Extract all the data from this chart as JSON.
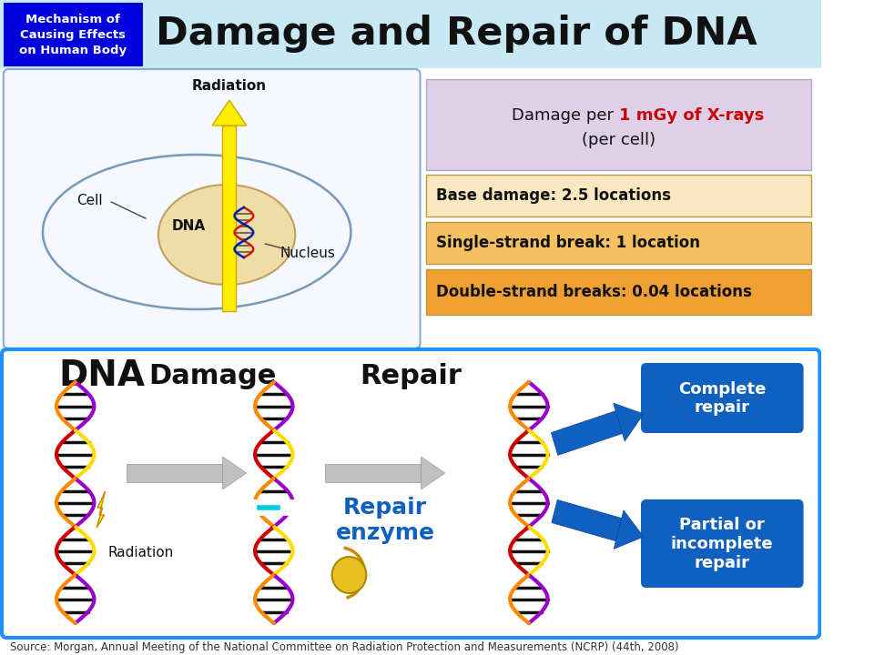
{
  "title": "Damage and Repair of DNA",
  "subtitle_box": "Mechanism of\nCausing Effects\non Human Body",
  "subtitle_box_color": "#0000dd",
  "subtitle_box_text_color": "#ffffff",
  "header_bg_color": "#c8e8f4",
  "damage_header_text_black": "Damage per ",
  "damage_header_text_red": "1 mGy of X-rays",
  "damage_header_text2": "(per cell)",
  "damage_header_color": "#ddd0e8",
  "damage_items": [
    {
      "text": "Base damage: 2.5 locations",
      "color": "#fce8c0"
    },
    {
      "text": "Single-strand break: 1 location",
      "color": "#f5c060"
    },
    {
      "text": "Double-strand breaks: 0.04 locations",
      "color": "#f0a030"
    }
  ],
  "bottom_section_border": "#1e90ff",
  "dna_label": "DNA",
  "damage_label": "Damage",
  "repair_label": "Repair",
  "repair_enzyme_label": "Repair\nenzyme",
  "radiation_label_upper": "Radiation",
  "radiation_label_lower": "Radiation",
  "complete_repair_label": "Complete\nrepair",
  "partial_repair_label": "Partial or\nincomplete\nrepair",
  "source_text": "Source: Morgan, Annual Meeting of the National Committee on Radiation Protection and Measurements (NCRP) (44th, 2008)",
  "blue_box_color": "#1060c0",
  "blue_box_text_color": "#ffffff",
  "cell_label": "Cell",
  "nucleus_label": "Nucleus",
  "dna_label_upper": "DNA"
}
